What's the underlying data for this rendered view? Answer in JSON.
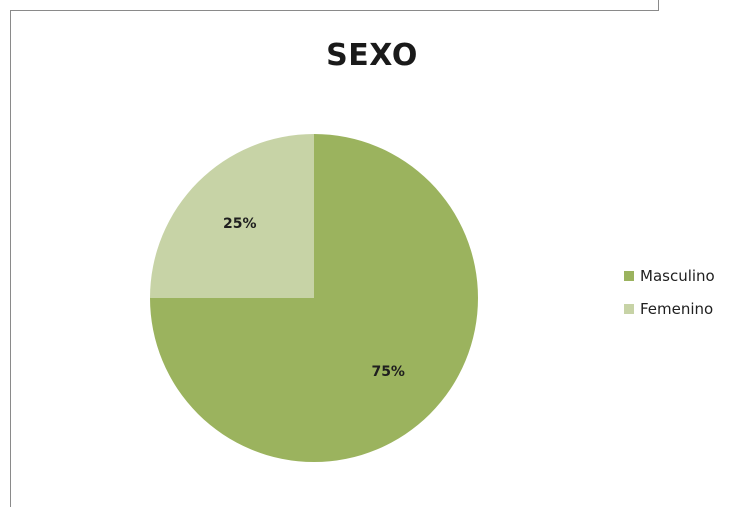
{
  "chart_data": {
    "type": "pie",
    "title": "SEXO",
    "categories": [
      "Masculino",
      "Femenino"
    ],
    "values": [
      75,
      25
    ],
    "labels": [
      "75%",
      "25%"
    ],
    "colors": [
      "#9bb35e",
      "#c7d3a6"
    ],
    "legend_position": "right"
  }
}
